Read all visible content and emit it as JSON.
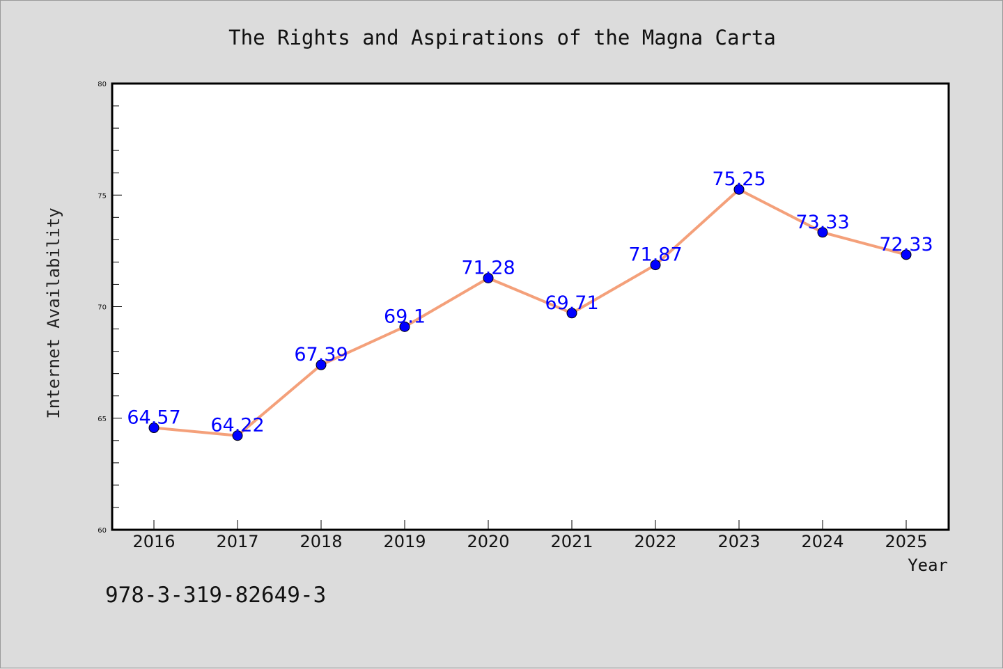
{
  "chart_data": {
    "type": "line",
    "title": "The Rights and Aspirations of the Magna Carta",
    "xlabel": "Year",
    "ylabel": "Internet Availability",
    "categories": [
      "2016",
      "2017",
      "2018",
      "2019",
      "2020",
      "2021",
      "2022",
      "2023",
      "2024",
      "2025"
    ],
    "series": [
      {
        "values": [
          64.57,
          64.22,
          67.39,
          69.1,
          71.28,
          69.71,
          71.87,
          75.25,
          73.33,
          72.33
        ],
        "labels": [
          "64.57",
          "64.22",
          "67.39",
          "69.1",
          "71.28",
          "69.71",
          "71.87",
          "75.25",
          "73.33",
          "72.33"
        ],
        "line_color": "#f4a07a",
        "marker_color": "#0000ff"
      }
    ],
    "ylim": [
      60,
      80
    ],
    "yticks": [
      60,
      65,
      70,
      75,
      80
    ],
    "grid": false,
    "legend": "none"
  },
  "footer": {
    "isbn": "978-3-319-82649-3"
  },
  "colors": {
    "background": "#dcdcdc",
    "plot_area": "#ffffff",
    "line": "#f4a07a",
    "marker": "#0000ff",
    "label": "#0000ff"
  }
}
